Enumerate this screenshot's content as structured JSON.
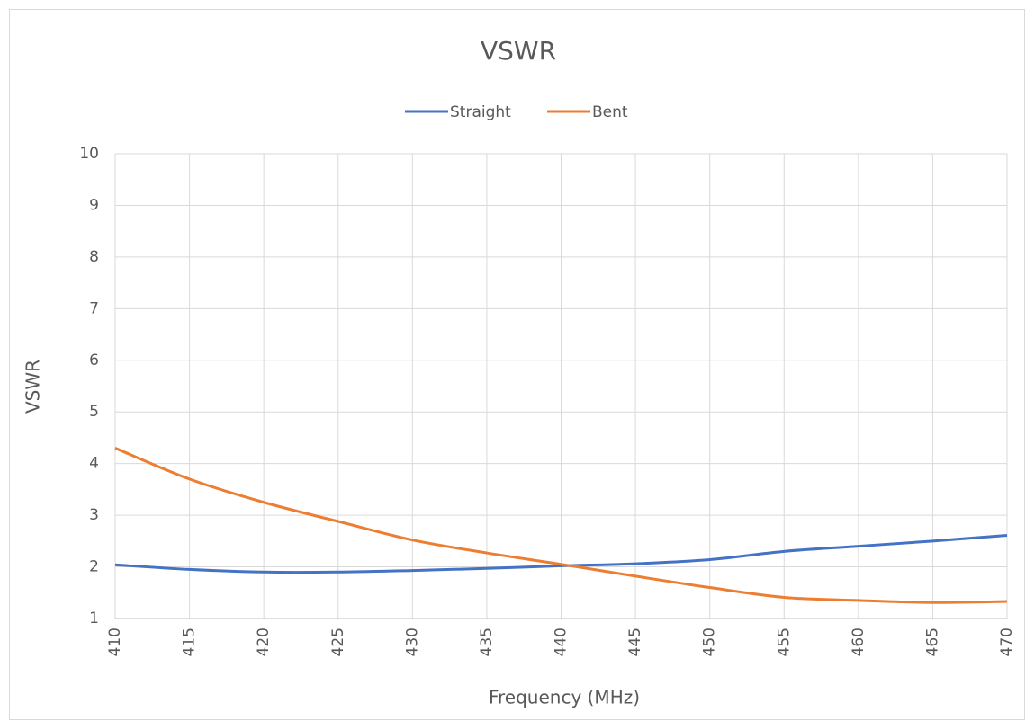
{
  "chart_data": {
    "type": "line",
    "title": "VSWR",
    "x_label": "Frequency (MHz)",
    "y_label": "VSWR",
    "x": [
      410,
      415,
      420,
      425,
      430,
      435,
      440,
      445,
      450,
      455,
      460,
      465,
      470
    ],
    "series": [
      {
        "name": "Straight",
        "color": "#4472c4",
        "values": [
          2.04,
          1.95,
          1.9,
          1.9,
          1.93,
          1.97,
          2.02,
          2.06,
          2.14,
          2.3,
          2.4,
          2.5,
          2.61
        ]
      },
      {
        "name": "Bent",
        "color": "#ed7d31",
        "values": [
          4.3,
          3.7,
          3.25,
          2.88,
          2.52,
          2.27,
          2.05,
          1.82,
          1.6,
          1.41,
          1.35,
          1.31,
          1.33
        ]
      }
    ],
    "xlim": [
      410,
      470
    ],
    "xticks": [
      410,
      415,
      420,
      425,
      430,
      435,
      440,
      445,
      450,
      455,
      460,
      465,
      470
    ],
    "ylim": [
      1,
      10
    ],
    "yticks": [
      1,
      2,
      3,
      4,
      5,
      6,
      7,
      8,
      9,
      10
    ],
    "grid": true,
    "legend": "top"
  }
}
